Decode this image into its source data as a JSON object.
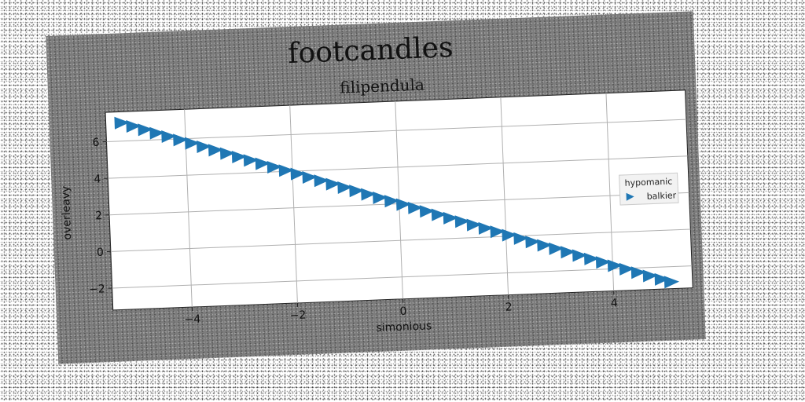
{
  "chart_data": {
    "type": "scatter",
    "title": "footcandles",
    "subtitle": "filipendula",
    "xlabel": "simonious",
    "ylabel": "overleavy",
    "xlim": [
      -5.5,
      5.5
    ],
    "ylim": [
      -3.2,
      7.6
    ],
    "xticks": [
      -4,
      -2,
      0,
      2,
      4
    ],
    "yticks": [
      -2,
      0,
      2,
      4,
      6
    ],
    "xtick_labels": [
      "−4",
      "−2",
      "0",
      "2",
      "4"
    ],
    "ytick_labels": [
      "−2",
      "0",
      "2",
      "4",
      "6"
    ],
    "grid": true,
    "legend": {
      "title": "hypomanic",
      "placement": "right"
    },
    "series": [
      {
        "name": "balkier",
        "marker": "triangle-right",
        "color": "#1f77b4",
        "x": [
          -5.2,
          -4.98,
          -4.76,
          -4.54,
          -4.32,
          -4.1,
          -3.88,
          -3.66,
          -3.44,
          -3.22,
          -3.0,
          -2.78,
          -2.56,
          -2.34,
          -2.12,
          -1.9,
          -1.68,
          -1.46,
          -1.24,
          -1.02,
          -0.8,
          -0.58,
          -0.36,
          -0.14,
          0.08,
          0.3,
          0.52,
          0.74,
          0.96,
          1.18,
          1.4,
          1.62,
          1.84,
          2.06,
          2.28,
          2.5,
          2.72,
          2.94,
          3.16,
          3.38,
          3.6,
          3.82,
          4.04,
          4.26,
          4.48,
          4.7,
          4.92,
          5.1
        ],
        "y": [
          7.0,
          6.79,
          6.58,
          6.37,
          6.16,
          5.95,
          5.74,
          5.53,
          5.32,
          5.11,
          4.9,
          4.69,
          4.48,
          4.27,
          4.06,
          3.85,
          3.64,
          3.43,
          3.22,
          3.01,
          2.8,
          2.59,
          2.38,
          2.17,
          1.96,
          1.75,
          1.54,
          1.33,
          1.12,
          0.91,
          0.7,
          0.49,
          0.28,
          0.07,
          -0.14,
          -0.35,
          -0.56,
          -0.77,
          -0.98,
          -1.19,
          -1.4,
          -1.61,
          -1.82,
          -2.03,
          -2.24,
          -2.45,
          -2.66,
          -2.83
        ]
      }
    ]
  }
}
